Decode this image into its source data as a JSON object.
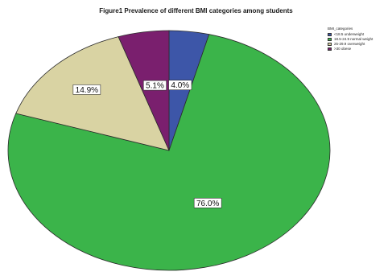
{
  "chart_data": {
    "type": "pie",
    "title": "Figure1 Prevalence of different BMI categories among students",
    "legend_title": "BMI_categories",
    "legend_position": "top-right",
    "slices": [
      {
        "label": "<18.5 underweight",
        "value": 4.0,
        "display": "4.0%",
        "color": "#3d56a8"
      },
      {
        "label": "18.5-24.9 normal weight",
        "value": 76.0,
        "display": "76.0%",
        "color": "#3bb44a"
      },
      {
        "label": "25-29.9 overweight",
        "value": 14.9,
        "display": "14.9%",
        "color": "#d9d3a3"
      },
      {
        "label": ">30 obese",
        "value": 5.1,
        "display": "5.1%",
        "color": "#7a1f6e"
      }
    ]
  }
}
